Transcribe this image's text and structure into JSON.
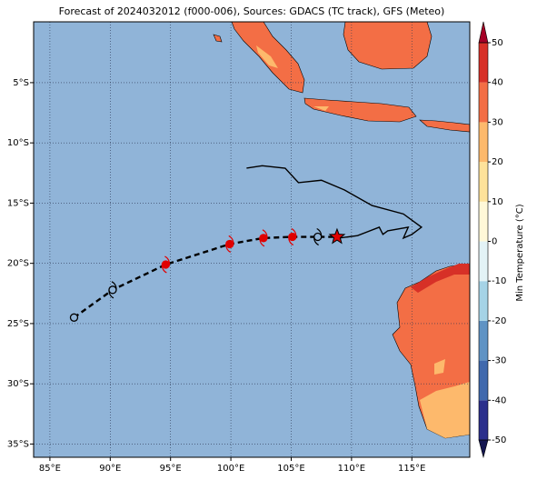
{
  "title": "Forecast of 2024032012 (f000-006), Sources: GDACS (TC track), GFS (Meteo)",
  "map": {
    "lonlim": [
      83.65,
      119.8
    ],
    "latlim": [
      -36.1,
      0.05
    ],
    "grid": true,
    "lonticks": [
      {
        "value": 85,
        "label": "85°E"
      },
      {
        "value": 90,
        "label": "90°E"
      },
      {
        "value": 95,
        "label": "95°E"
      },
      {
        "value": 100,
        "label": "100°E"
      },
      {
        "value": 105,
        "label": "105°E"
      },
      {
        "value": 110,
        "label": "110°E"
      },
      {
        "value": 115,
        "label": "115°E"
      }
    ],
    "latticks": [
      {
        "value": -5,
        "label": "5°S"
      },
      {
        "value": -10,
        "label": "10°S"
      },
      {
        "value": -15,
        "label": "15°S"
      },
      {
        "value": -20,
        "label": "20°S"
      },
      {
        "value": -25,
        "label": "25°S"
      },
      {
        "value": -30,
        "label": "30°S"
      },
      {
        "value": -35,
        "label": "35°S"
      }
    ],
    "ocean_color": "#90b4d8",
    "forecast_track": {
      "lon": [
        87.0,
        90.2,
        94.6,
        99.9,
        102.7,
        105.1,
        107.2
      ],
      "lat": [
        -24.5,
        -22.2,
        -20.1,
        -18.4,
        -17.9,
        -17.8,
        -17.8
      ],
      "marker_colors": [
        "none",
        "none",
        "#e00000",
        "#e00000",
        "#e00000",
        "#e00000",
        "none"
      ]
    },
    "observed_track": {
      "lon": [
        101.3,
        102.6,
        104.5,
        105.6,
        107.5,
        109.4,
        111.7,
        114.3,
        115.8,
        115.0,
        114.3,
        114.7,
        113.0,
        112.6,
        112.3,
        110.5,
        109.0
      ],
      "lat": [
        -12.1,
        -11.9,
        -12.1,
        -13.3,
        -13.1,
        -13.9,
        -15.2,
        -15.9,
        -17.0,
        -17.6,
        -17.9,
        -17.0,
        -17.3,
        -17.6,
        -17.0,
        -17.7,
        -17.9
      ]
    },
    "current_position": {
      "lon": 108.8,
      "lat": -17.8,
      "color": "#e00000"
    }
  },
  "colorbar": {
    "label": "Min Temperature (°C)",
    "lim": [
      -50,
      50
    ],
    "ticks": [
      -50,
      -40,
      -30,
      -20,
      -10,
      0,
      10,
      20,
      30,
      40,
      50
    ],
    "colors": [
      "#2b2f8c",
      "#4069ad",
      "#5f93c4",
      "#a5d3e6",
      "#e3f3f6",
      "#fff8d8",
      "#fee29a",
      "#fdb96c",
      "#f36e45",
      "#d73027"
    ],
    "extend_colors": [
      "#141650",
      "#a50026"
    ]
  }
}
